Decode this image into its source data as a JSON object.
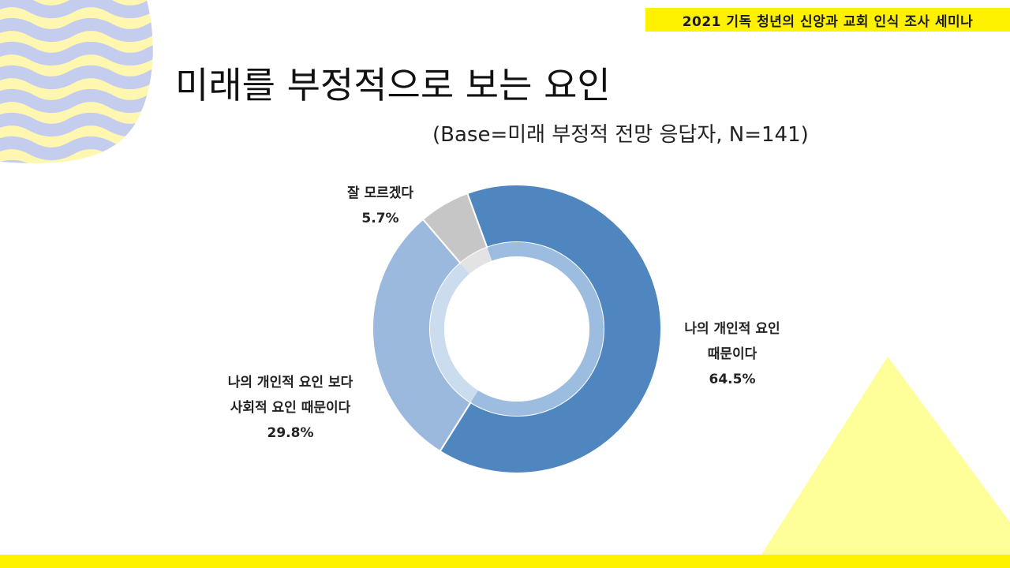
{
  "header": {
    "badge": "2021 기독 청년의 신앙과 교회 인식 조사 세미나"
  },
  "page": {
    "title": "미래를 부정적으로 보는 요인",
    "base_note": "(Base=미래 부정적 전망 응답자, N=141)"
  },
  "colors": {
    "accent_yellow": "#fff200",
    "wave_blue": "#c5cdee",
    "wave_yellow": "#fff6b0",
    "triangle_yellow": "#ffff99"
  },
  "chart_data": {
    "type": "pie",
    "donut": true,
    "slices": [
      {
        "label": [
          "나의 개인적 요인",
          "때문이다"
        ],
        "value": 64.5,
        "display": "64.5%",
        "color": "#4f86bf",
        "inner_color": "#9dbde0"
      },
      {
        "label": [
          "나의 개인적 요인 보다",
          "사회적 요인 때문이다"
        ],
        "value": 29.8,
        "display": "29.8%",
        "color": "#9bb8dd",
        "inner_color": "#cbdcef"
      },
      {
        "label": [
          "잘 모르겠다"
        ],
        "value": 5.7,
        "display": "5.7%",
        "color": "#c6c6c6",
        "inner_color": "#e3e3e3"
      }
    ]
  }
}
